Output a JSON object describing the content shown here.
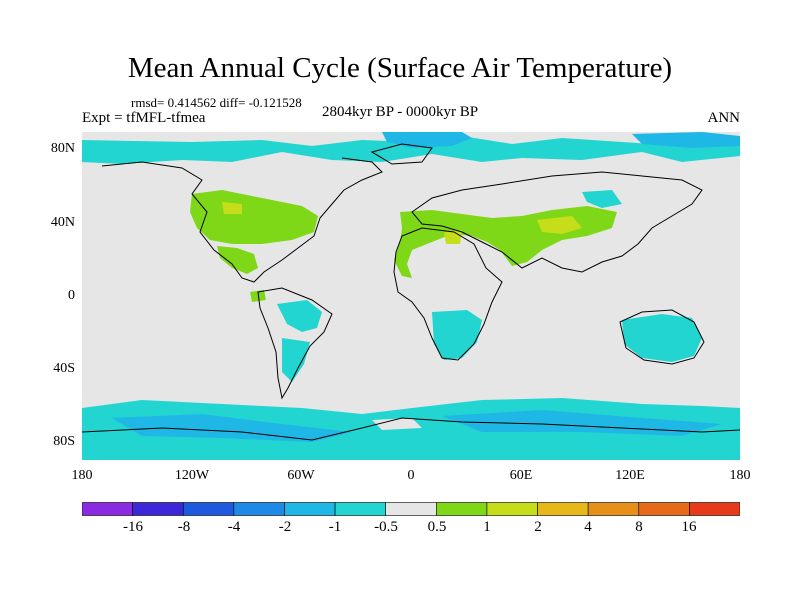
{
  "header": {
    "title": "Mean Annual Cycle (Surface Air Temperature)",
    "stats": "rmsd= 0.414562 diff= -0.121528",
    "experiment": "Expt = tfMFL-tfmea",
    "period": "2804kyr BP - 0000kyr BP",
    "season": "ANN"
  },
  "map": {
    "lat_labels": [
      "80N",
      "40N",
      "0",
      "40S",
      "80S"
    ],
    "lon_labels": [
      "180",
      "120W",
      "60W",
      "0",
      "60E",
      "120E",
      "180"
    ],
    "colors": {
      "ocean_background": "#e6e6e6",
      "coastline": "#000000",
      "cyan_anomaly": "#22d5d0",
      "light_blue_anomaly": "#1fb8e6",
      "green_anomaly": "#7fd817",
      "yellow_anomaly": "#c6de1a"
    }
  },
  "colorbar": {
    "labels": [
      "-16",
      "-8",
      "-4",
      "-2",
      "-1",
      "-0.5",
      "0.5",
      "1",
      "2",
      "4",
      "8",
      "16"
    ],
    "colors": [
      "#8a2be2",
      "#3c28d8",
      "#1e5ae0",
      "#1e8ae6",
      "#1fb8e6",
      "#22d5d0",
      "#e6e6e6",
      "#7fd817",
      "#c6de1a",
      "#e6b81a",
      "#e6901a",
      "#e66a1a",
      "#e63a1a"
    ]
  }
}
